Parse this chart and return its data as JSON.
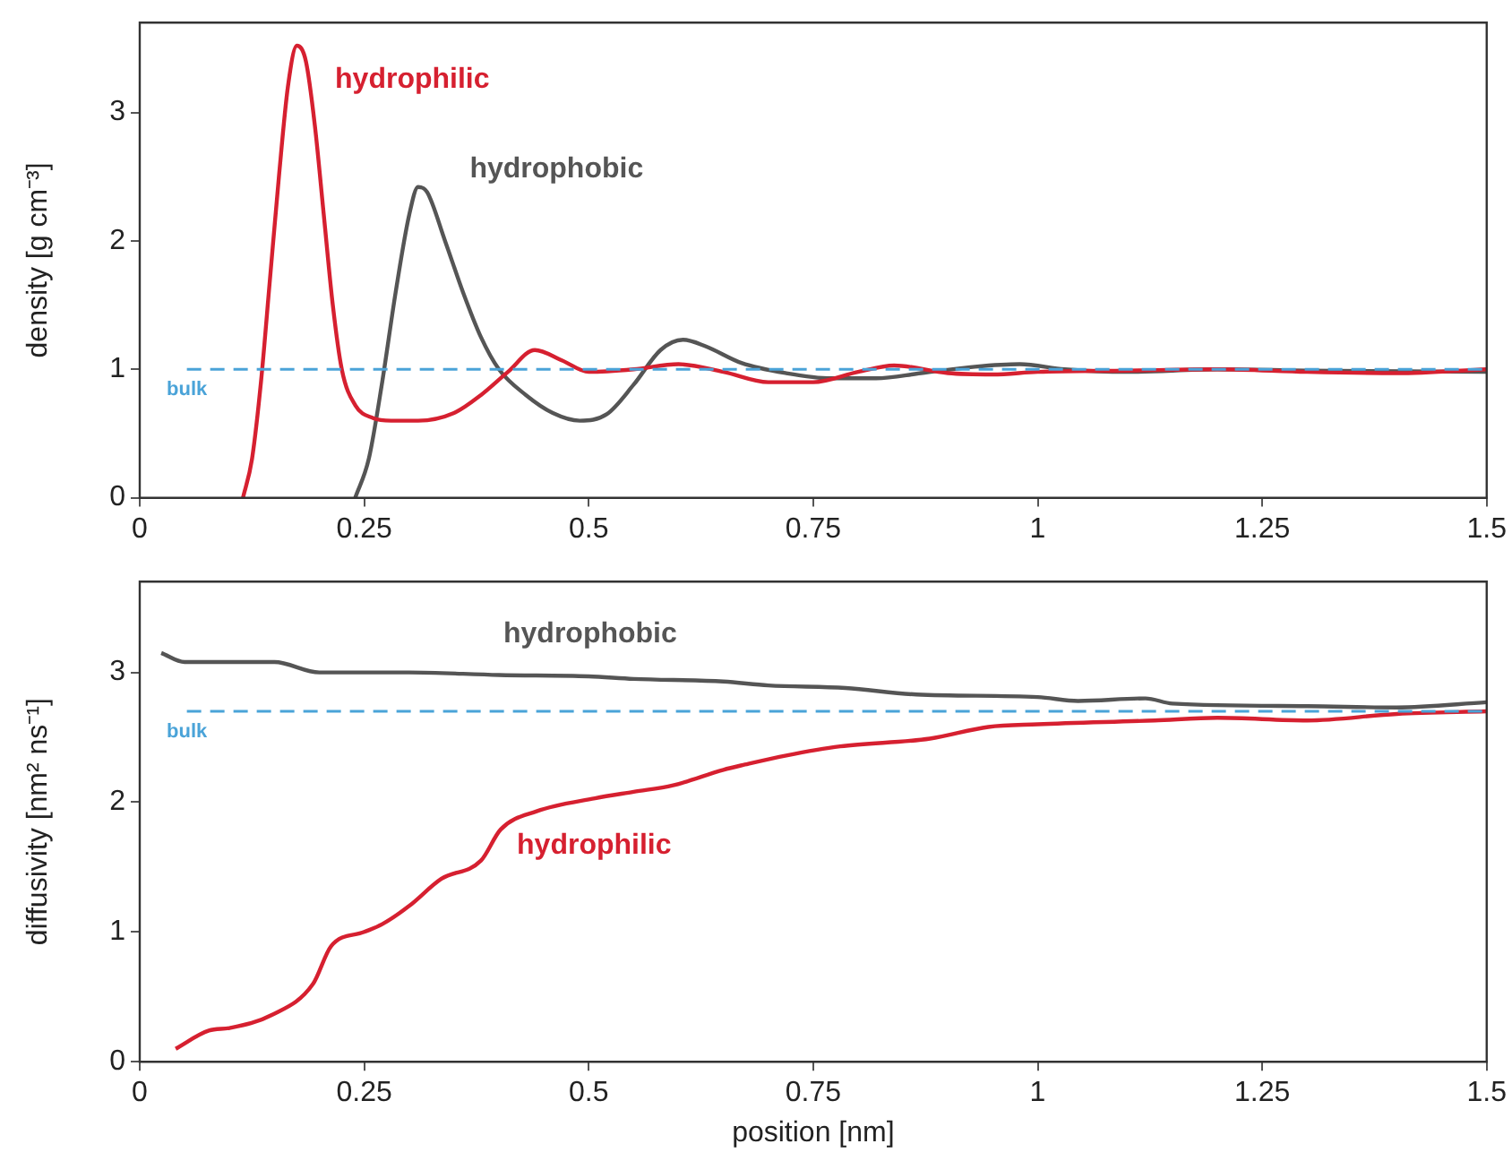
{
  "chart_data": [
    {
      "type": "line",
      "ylabel": "density [g cm⁻³]",
      "xlim": [
        0,
        1.5
      ],
      "ylim": [
        0,
        3.7
      ],
      "xticks": [
        0,
        0.25,
        0.5,
        0.75,
        1,
        1.25,
        1.5
      ],
      "yticks": [
        0,
        1,
        2,
        3
      ],
      "legend": false,
      "grid": false,
      "marker": "none",
      "series": [
        {
          "name": "hydrophilic",
          "color": "#d62030",
          "x": [
            0.115,
            0.125,
            0.135,
            0.145,
            0.155,
            0.165,
            0.175,
            0.185,
            0.195,
            0.205,
            0.215,
            0.225,
            0.24,
            0.26,
            0.28,
            0.31,
            0.35,
            0.38,
            0.41,
            0.44,
            0.47,
            0.5,
            0.55,
            0.6,
            0.65,
            0.7,
            0.75,
            0.8,
            0.84,
            0.9,
            0.95,
            1.0,
            1.1,
            1.2,
            1.3,
            1.4,
            1.5
          ],
          "values": [
            0,
            0.3,
            0.9,
            1.7,
            2.5,
            3.2,
            3.52,
            3.4,
            2.9,
            2.2,
            1.5,
            1.0,
            0.72,
            0.62,
            0.6,
            0.6,
            0.66,
            0.8,
            0.98,
            1.15,
            1.07,
            0.98,
            1.0,
            1.04,
            0.98,
            0.9,
            0.9,
            0.98,
            1.03,
            0.97,
            0.96,
            0.98,
            0.99,
            1.0,
            0.98,
            0.97,
            1.0
          ]
        },
        {
          "name": "hydrophobic",
          "color": "#555555",
          "x": [
            0.24,
            0.255,
            0.27,
            0.285,
            0.3,
            0.31,
            0.32,
            0.34,
            0.36,
            0.38,
            0.4,
            0.43,
            0.46,
            0.49,
            0.52,
            0.55,
            0.58,
            0.605,
            0.63,
            0.67,
            0.72,
            0.77,
            0.82,
            0.87,
            0.93,
            0.98,
            1.03,
            1.1,
            1.2,
            1.3,
            1.5
          ],
          "values": [
            0,
            0.3,
            0.9,
            1.6,
            2.2,
            2.42,
            2.38,
            2.0,
            1.6,
            1.25,
            1.0,
            0.8,
            0.66,
            0.6,
            0.65,
            0.88,
            1.15,
            1.23,
            1.18,
            1.05,
            0.97,
            0.93,
            0.93,
            0.97,
            1.02,
            1.04,
            1.0,
            0.98,
            1.0,
            0.99,
            0.98
          ]
        }
      ],
      "ref_lines": [
        {
          "axis": "y",
          "value": 1,
          "label": "bulk",
          "color": "#4aa3d8",
          "line_style": "dashed"
        }
      ]
    },
    {
      "type": "line",
      "xlabel": "position [nm]",
      "ylabel": "diffusivity [nm² ns⁻¹]",
      "xlim": [
        0,
        1.5
      ],
      "ylim": [
        0,
        3.7
      ],
      "xticks": [
        0,
        0.25,
        0.5,
        0.75,
        1,
        1.25,
        1.5
      ],
      "yticks": [
        0,
        1,
        2,
        3
      ],
      "legend": false,
      "grid": false,
      "marker": "none",
      "series": [
        {
          "name": "hydrophobic",
          "color": "#555555",
          "x": [
            0.024,
            0.05,
            0.1,
            0.15,
            0.2,
            0.3,
            0.4,
            0.5,
            0.55,
            0.65,
            0.7,
            0.786,
            0.865,
            1.0,
            1.045,
            1.12,
            1.15,
            1.3,
            1.4,
            1.5
          ],
          "values": [
            3.15,
            3.08,
            3.08,
            3.08,
            3.0,
            3.0,
            2.98,
            2.97,
            2.95,
            2.93,
            2.9,
            2.88,
            2.83,
            2.81,
            2.78,
            2.8,
            2.76,
            2.74,
            2.73,
            2.77
          ]
        },
        {
          "name": "hydrophilic",
          "color": "#d62030",
          "x": [
            0.04,
            0.077,
            0.1,
            0.147,
            0.193,
            0.213,
            0.25,
            0.27,
            0.3,
            0.336,
            0.38,
            0.402,
            0.442,
            0.507,
            0.55,
            0.594,
            0.65,
            0.674,
            0.72,
            0.78,
            0.88,
            0.945,
            1.0,
            1.13,
            1.2,
            1.3,
            1.4,
            1.5
          ],
          "values": [
            0.1,
            0.24,
            0.26,
            0.36,
            0.6,
            0.89,
            1.0,
            1.06,
            1.2,
            1.41,
            1.55,
            1.79,
            1.93,
            2.03,
            2.08,
            2.13,
            2.25,
            2.29,
            2.36,
            2.43,
            2.49,
            2.58,
            2.6,
            2.63,
            2.65,
            2.63,
            2.68,
            2.7
          ]
        }
      ],
      "ref_lines": [
        {
          "axis": "y",
          "value": 2.7,
          "label": "bulk",
          "color": "#4aa3d8",
          "line_style": "dashed"
        }
      ]
    }
  ]
}
